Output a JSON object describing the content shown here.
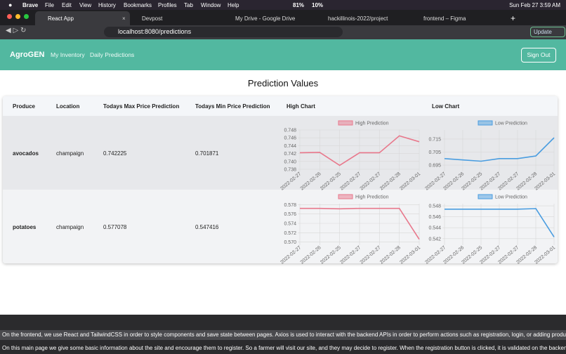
{
  "menu_bar": {
    "app": "Brave",
    "items": [
      "File",
      "Edit",
      "View",
      "History",
      "Bookmarks",
      "Profiles",
      "Tab",
      "Window",
      "Help"
    ],
    "battery": "81%",
    "cpu": "10%",
    "clock": "Sun Feb 27  3:59 AM"
  },
  "tabs": [
    "React App",
    "Devpost",
    "My Drive - Google Drive",
    "hackillinois-2022/project",
    "frontend – Figma"
  ],
  "address": "localhost:8080/predictions",
  "update_button": "Update",
  "nav": {
    "brand": "AgroGEN",
    "links": [
      "My Inventory",
      "Daily Predictions"
    ],
    "sign_out": "Sign Out"
  },
  "page_title": "Prediction Values",
  "table": {
    "headers": [
      "Produce",
      "Location",
      "Todays Max Price Prediction",
      "Todays Min Price Prediction",
      "High Chart",
      "Low Chart"
    ],
    "rows": [
      {
        "produce": "avocados",
        "location": "champaign",
        "max": "0.742225",
        "min": "0.701871",
        "high_chart": {
          "type": "line",
          "legend": "High Prediction",
          "color": "#e8788c",
          "x": [
            "2022-02-27",
            "2022-02-26",
            "2022-02-25",
            "2022-02-27",
            "2022-02-27",
            "2022-02-28",
            "2022-03-01"
          ],
          "values": [
            0.7422,
            0.7423,
            0.739,
            0.7422,
            0.7422,
            0.7465,
            0.745
          ],
          "ylim": [
            0.738,
            0.748
          ],
          "yticks": [
            0.738,
            {
              "value": 0.74,
              "label": "0.740"
            },
            0.742,
            0.744,
            0.746,
            0.748
          ]
        },
        "low_chart": {
          "type": "line",
          "legend": "Low Prediction",
          "color": "#4a9de0",
          "x": [
            "2022-02-27",
            "2022-02-26",
            "2022-02-25",
            "2022-02-27",
            "2022-02-27",
            "2022-02-28",
            "2022-03-01"
          ],
          "values": [
            0.7,
            0.699,
            0.698,
            0.7,
            0.7,
            0.702,
            0.716
          ],
          "ylim": [
            0.6918,
            0.722
          ],
          "yticks": [
            0.695,
            0.705,
            0.715
          ]
        }
      },
      {
        "produce": "potatoes",
        "location": "champaign",
        "max": "0.577078",
        "min": "0.547416",
        "high_chart": {
          "type": "line",
          "legend": "High Prediction",
          "color": "#e8788c",
          "x": [
            "2022-02-27",
            "2022-02-26",
            "2022-02-25",
            "2022-02-27",
            "2022-02-27",
            "2022-02-28",
            "2022-03-01"
          ],
          "values": [
            0.5772,
            0.5772,
            0.5771,
            0.5772,
            0.5772,
            0.5772,
            0.5706
          ],
          "ylim": [
            0.5698,
            0.5782
          ],
          "yticks": [
            {
              "value": 0.57,
              "label": "0.570"
            },
            0.572,
            0.574,
            0.576,
            0.578
          ]
        },
        "low_chart": {
          "type": "line",
          "legend": "Low Prediction",
          "color": "#4a9de0",
          "x": [
            "2022-02-27",
            "2022-02-26",
            "2022-02-25",
            "2022-02-27",
            "2022-02-27",
            "2022-02-28",
            "2022-03-01"
          ],
          "values": [
            0.5474,
            0.5474,
            0.5474,
            0.5474,
            0.5474,
            0.5475,
            0.5423
          ],
          "ylim": [
            0.5412,
            0.5484
          ],
          "yticks": [
            0.542,
            0.544,
            0.546,
            0.548
          ]
        }
      }
    ]
  },
  "footer_text": [
    "On the frontend, we use React and TailwindCSS in order to style components and save state between pages. Axios is used to interact with the backend APIs in order to perform actions such as registration, login, or adding produce.",
    "On this main page we give some basic information about the site and encourage them to register. So a farmer will visit our site, and they may decide to register. When the registration button is clicked, it is validated on the backend"
  ]
}
